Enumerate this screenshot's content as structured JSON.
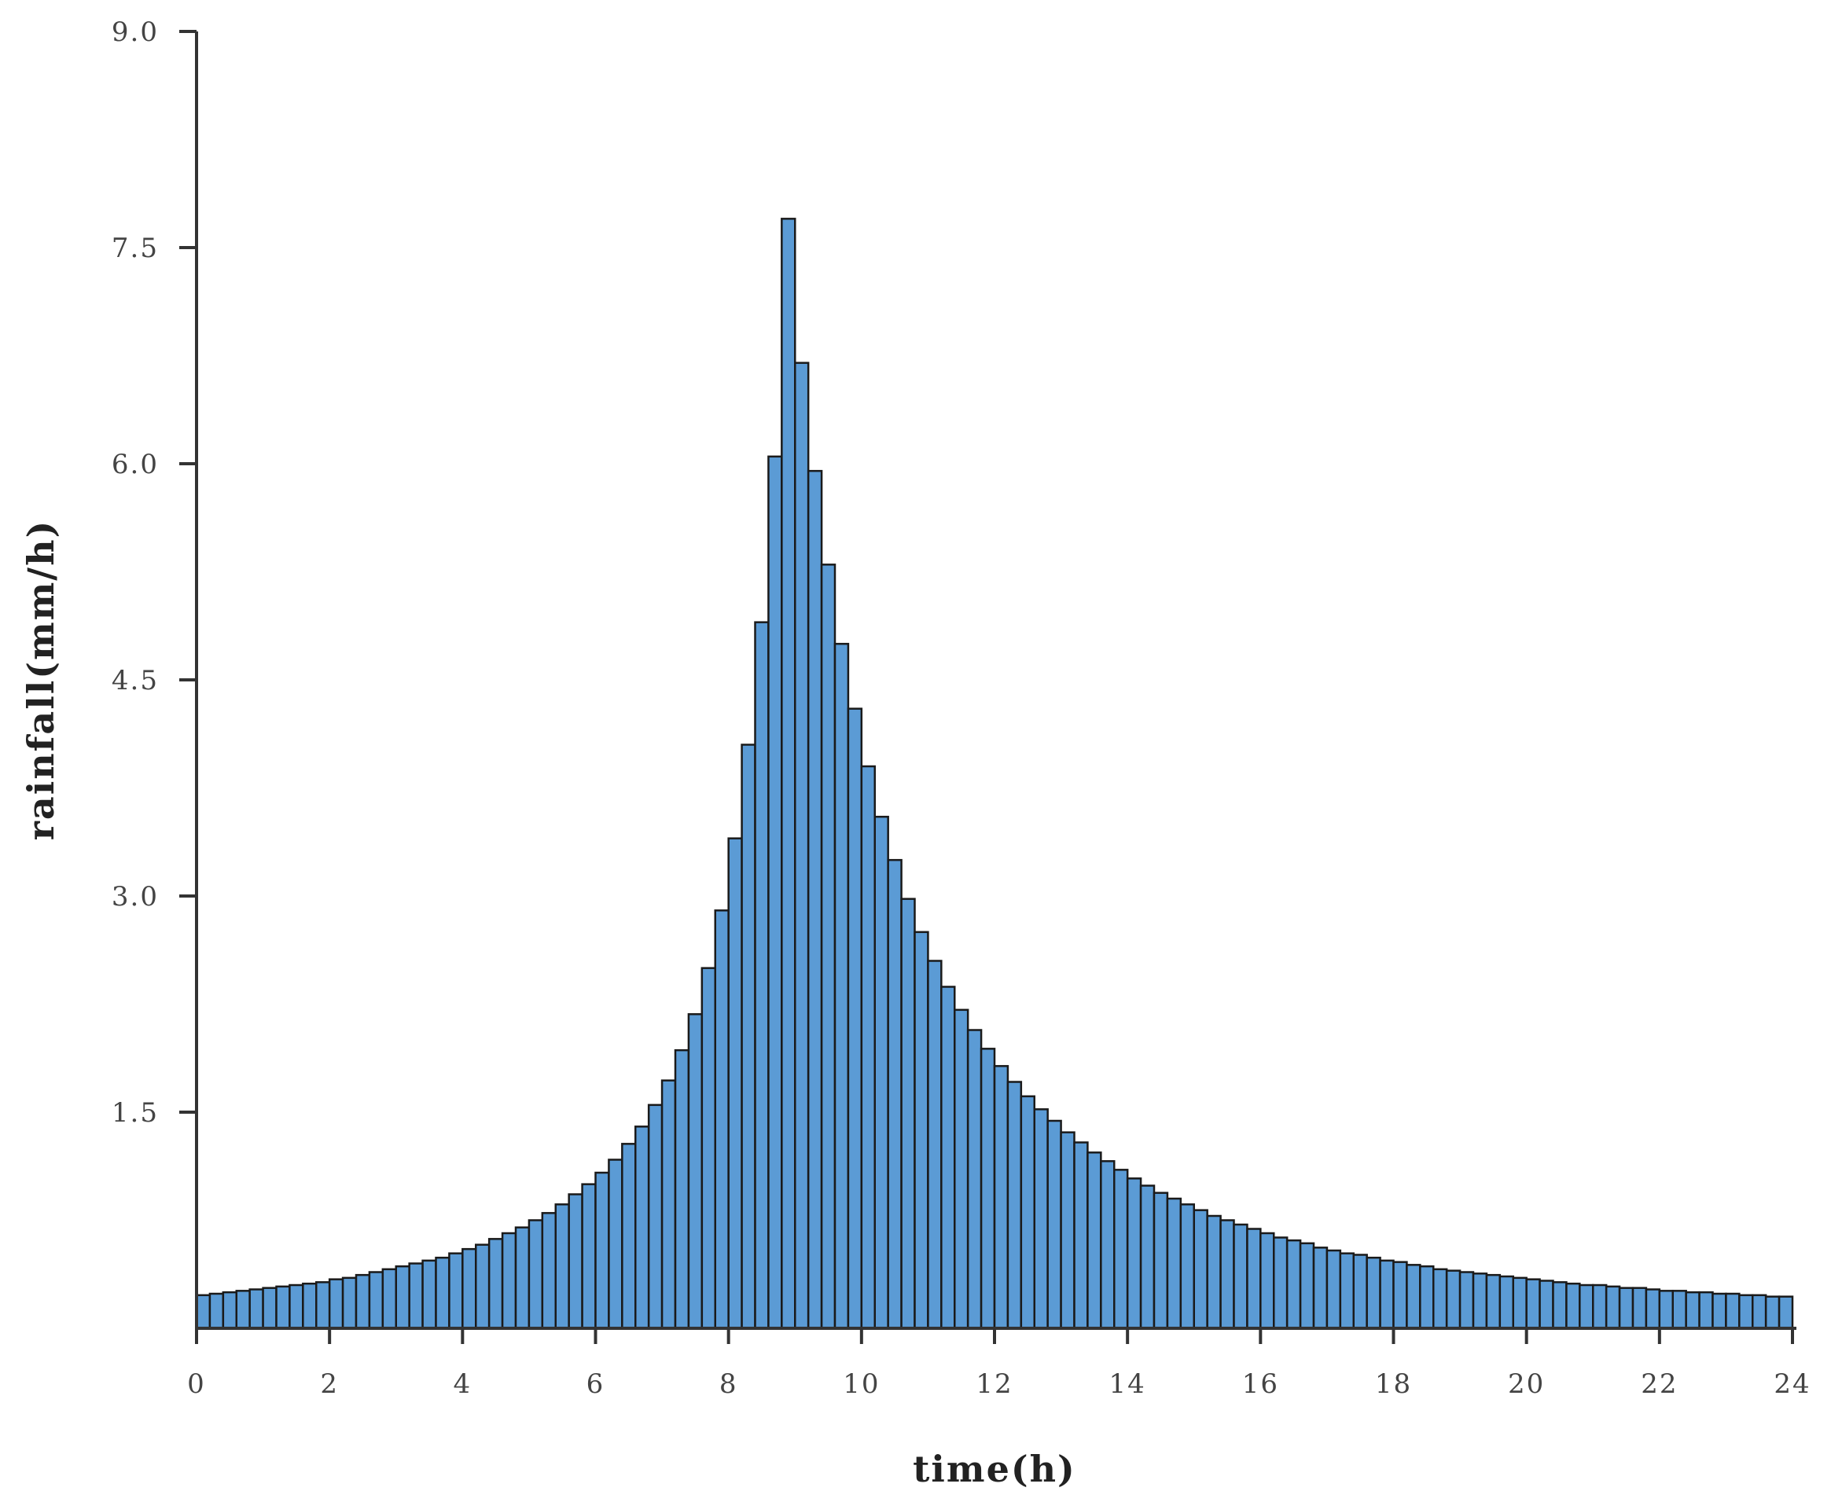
{
  "chart_data": {
    "type": "bar",
    "xlabel": "time(h)",
    "ylabel": "rainfall(mm/h)",
    "xlim": [
      0,
      24
    ],
    "ylim": [
      0,
      9.0
    ],
    "x_ticks": [
      "0",
      "2",
      "4",
      "6",
      "8",
      "10",
      "12",
      "14",
      "16",
      "18",
      "20",
      "22",
      "24"
    ],
    "y_ticks": [
      "9.0",
      "7.5",
      "6.0",
      "4.5",
      "3.0",
      "1.5"
    ],
    "bar_interval_h": 0.2,
    "grid": false,
    "bar_color": "#5b9bd5",
    "bar_edge_color": "#1a1a1a",
    "values": [
      0.23,
      0.24,
      0.25,
      0.26,
      0.27,
      0.28,
      0.29,
      0.3,
      0.31,
      0.32,
      0.34,
      0.35,
      0.37,
      0.39,
      0.41,
      0.43,
      0.45,
      0.47,
      0.49,
      0.52,
      0.55,
      0.58,
      0.62,
      0.66,
      0.7,
      0.75,
      0.8,
      0.86,
      0.93,
      1.0,
      1.08,
      1.17,
      1.28,
      1.4,
      1.55,
      1.72,
      1.93,
      2.18,
      2.5,
      2.9,
      3.4,
      4.05,
      4.9,
      6.05,
      7.7,
      6.7,
      5.95,
      5.3,
      4.75,
      4.3,
      3.9,
      3.55,
      3.25,
      2.98,
      2.75,
      2.55,
      2.37,
      2.21,
      2.07,
      1.94,
      1.82,
      1.71,
      1.61,
      1.52,
      1.44,
      1.36,
      1.29,
      1.22,
      1.16,
      1.1,
      1.04,
      0.99,
      0.94,
      0.9,
      0.86,
      0.82,
      0.78,
      0.75,
      0.72,
      0.69,
      0.66,
      0.63,
      0.61,
      0.59,
      0.56,
      0.54,
      0.52,
      0.51,
      0.49,
      0.47,
      0.46,
      0.44,
      0.43,
      0.41,
      0.4,
      0.39,
      0.38,
      0.37,
      0.36,
      0.35,
      0.34,
      0.33,
      0.32,
      0.31,
      0.3,
      0.3,
      0.29,
      0.28,
      0.28,
      0.27,
      0.26,
      0.26,
      0.25,
      0.25,
      0.24,
      0.24,
      0.23,
      0.23,
      0.22,
      0.22
    ]
  }
}
